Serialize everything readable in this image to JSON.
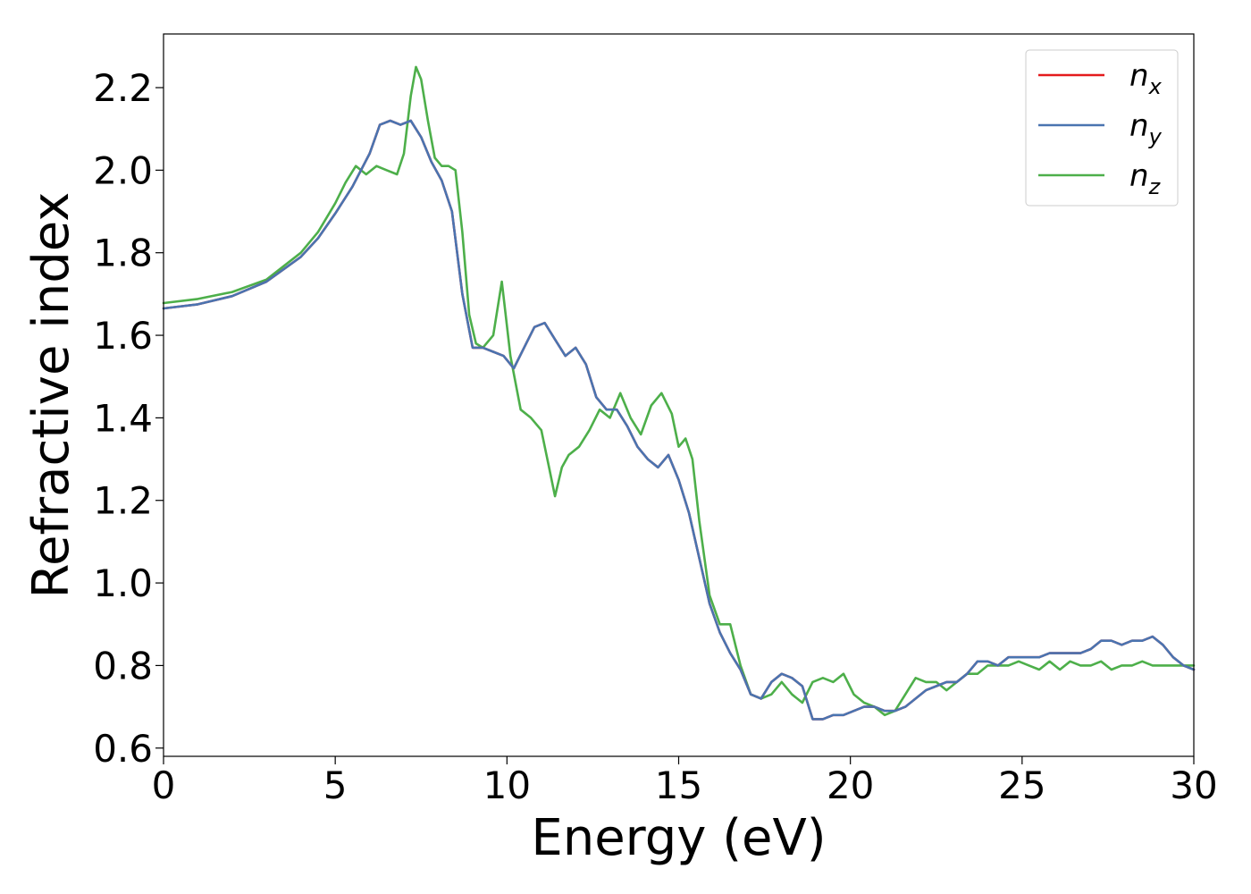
{
  "chart_data": {
    "type": "line",
    "title": "",
    "xlabel": "Energy (eV)",
    "ylabel": "Refractive index",
    "xlim": [
      0,
      30
    ],
    "ylim": [
      0.58,
      2.33
    ],
    "xticks": [
      "0",
      "5",
      "10",
      "15",
      "20",
      "25",
      "30"
    ],
    "yticks": [
      "0.6",
      "0.8",
      "1.0",
      "1.2",
      "1.4",
      "1.6",
      "1.8",
      "2.0",
      "2.2"
    ],
    "grid": false,
    "legend_position": "top-right",
    "series": [
      {
        "name": "n_x",
        "label_base": "n",
        "label_sub": "x",
        "color": "#e41a1c",
        "x": [
          0,
          1,
          2,
          3,
          4,
          4.5,
          5,
          5.5,
          6,
          6.3,
          6.6,
          6.9,
          7.2,
          7.5,
          7.8,
          8.1,
          8.4,
          8.7,
          9.0,
          9.3,
          9.6,
          9.9,
          10.2,
          10.5,
          10.8,
          11.1,
          11.4,
          11.7,
          12.0,
          12.3,
          12.6,
          12.9,
          13.2,
          13.5,
          13.8,
          14.1,
          14.4,
          14.7,
          15.0,
          15.3,
          15.6,
          15.9,
          16.2,
          16.5,
          16.8,
          17.1,
          17.4,
          17.7,
          18.0,
          18.3,
          18.6,
          18.9,
          19.2,
          19.5,
          19.8,
          20.1,
          20.4,
          20.7,
          21.0,
          21.3,
          21.6,
          21.9,
          22.2,
          22.5,
          22.8,
          23.1,
          23.4,
          23.7,
          24.0,
          24.3,
          24.6,
          24.9,
          25.2,
          25.5,
          25.8,
          26.1,
          26.4,
          26.7,
          27.0,
          27.3,
          27.6,
          27.9,
          28.2,
          28.5,
          28.8,
          29.1,
          29.4,
          29.7,
          30.0
        ],
        "y": [
          1.665,
          1.675,
          1.695,
          1.73,
          1.79,
          1.835,
          1.895,
          1.96,
          2.04,
          2.11,
          2.12,
          2.11,
          2.12,
          2.08,
          2.02,
          1.975,
          1.9,
          1.7,
          1.57,
          1.57,
          1.56,
          1.55,
          1.52,
          1.57,
          1.62,
          1.63,
          1.59,
          1.55,
          1.57,
          1.53,
          1.45,
          1.42,
          1.42,
          1.38,
          1.33,
          1.3,
          1.28,
          1.31,
          1.25,
          1.17,
          1.06,
          0.95,
          0.88,
          0.83,
          0.79,
          0.73,
          0.72,
          0.76,
          0.78,
          0.77,
          0.75,
          0.67,
          0.67,
          0.68,
          0.68,
          0.69,
          0.7,
          0.7,
          0.69,
          0.69,
          0.7,
          0.72,
          0.74,
          0.75,
          0.76,
          0.76,
          0.78,
          0.81,
          0.81,
          0.8,
          0.82,
          0.82,
          0.82,
          0.82,
          0.83,
          0.83,
          0.83,
          0.83,
          0.84,
          0.86,
          0.86,
          0.85,
          0.86,
          0.86,
          0.87,
          0.85,
          0.82,
          0.8,
          0.79
        ]
      },
      {
        "name": "n_y",
        "label_base": "n",
        "label_sub": "y",
        "color": "#4a74b0",
        "x": [
          0,
          1,
          2,
          3,
          4,
          4.5,
          5,
          5.5,
          6,
          6.3,
          6.6,
          6.9,
          7.2,
          7.5,
          7.8,
          8.1,
          8.4,
          8.7,
          9.0,
          9.3,
          9.6,
          9.9,
          10.2,
          10.5,
          10.8,
          11.1,
          11.4,
          11.7,
          12.0,
          12.3,
          12.6,
          12.9,
          13.2,
          13.5,
          13.8,
          14.1,
          14.4,
          14.7,
          15.0,
          15.3,
          15.6,
          15.9,
          16.2,
          16.5,
          16.8,
          17.1,
          17.4,
          17.7,
          18.0,
          18.3,
          18.6,
          18.9,
          19.2,
          19.5,
          19.8,
          20.1,
          20.4,
          20.7,
          21.0,
          21.3,
          21.6,
          21.9,
          22.2,
          22.5,
          22.8,
          23.1,
          23.4,
          23.7,
          24.0,
          24.3,
          24.6,
          24.9,
          25.2,
          25.5,
          25.8,
          26.1,
          26.4,
          26.7,
          27.0,
          27.3,
          27.6,
          27.9,
          28.2,
          28.5,
          28.8,
          29.1,
          29.4,
          29.7,
          30.0
        ],
        "y": [
          1.665,
          1.675,
          1.695,
          1.73,
          1.79,
          1.835,
          1.895,
          1.96,
          2.04,
          2.11,
          2.12,
          2.11,
          2.12,
          2.08,
          2.02,
          1.975,
          1.9,
          1.7,
          1.57,
          1.57,
          1.56,
          1.55,
          1.52,
          1.57,
          1.62,
          1.63,
          1.59,
          1.55,
          1.57,
          1.53,
          1.45,
          1.42,
          1.42,
          1.38,
          1.33,
          1.3,
          1.28,
          1.31,
          1.25,
          1.17,
          1.06,
          0.95,
          0.88,
          0.83,
          0.79,
          0.73,
          0.72,
          0.76,
          0.78,
          0.77,
          0.75,
          0.67,
          0.67,
          0.68,
          0.68,
          0.69,
          0.7,
          0.7,
          0.69,
          0.69,
          0.7,
          0.72,
          0.74,
          0.75,
          0.76,
          0.76,
          0.78,
          0.81,
          0.81,
          0.8,
          0.82,
          0.82,
          0.82,
          0.82,
          0.83,
          0.83,
          0.83,
          0.83,
          0.84,
          0.86,
          0.86,
          0.85,
          0.86,
          0.86,
          0.87,
          0.85,
          0.82,
          0.8,
          0.79
        ]
      },
      {
        "name": "n_z",
        "label_base": "n",
        "label_sub": "z",
        "color": "#4daf4a",
        "x": [
          0,
          1,
          2,
          3,
          4,
          4.5,
          5,
          5.3,
          5.6,
          5.9,
          6.2,
          6.5,
          6.8,
          7.0,
          7.2,
          7.35,
          7.5,
          7.7,
          7.9,
          8.1,
          8.3,
          8.5,
          8.7,
          8.9,
          9.1,
          9.3,
          9.6,
          9.85,
          10.1,
          10.4,
          10.7,
          11.0,
          11.2,
          11.4,
          11.6,
          11.8,
          12.1,
          12.4,
          12.7,
          13.0,
          13.3,
          13.6,
          13.9,
          14.2,
          14.5,
          14.8,
          15.0,
          15.2,
          15.4,
          15.6,
          15.9,
          16.2,
          16.5,
          16.8,
          17.1,
          17.4,
          17.7,
          18.0,
          18.3,
          18.6,
          18.9,
          19.2,
          19.5,
          19.8,
          20.1,
          20.4,
          20.7,
          21.0,
          21.3,
          21.6,
          21.9,
          22.2,
          22.5,
          22.8,
          23.1,
          23.4,
          23.7,
          24.0,
          24.3,
          24.6,
          24.9,
          25.2,
          25.5,
          25.8,
          26.1,
          26.4,
          26.7,
          27.0,
          27.3,
          27.6,
          27.9,
          28.2,
          28.5,
          28.8,
          29.1,
          29.4,
          29.7,
          30.0
        ],
        "y": [
          1.678,
          1.688,
          1.705,
          1.735,
          1.8,
          1.85,
          1.92,
          1.97,
          2.01,
          1.99,
          2.01,
          2.0,
          1.99,
          2.04,
          2.18,
          2.25,
          2.22,
          2.12,
          2.03,
          2.01,
          2.01,
          2.0,
          1.85,
          1.65,
          1.58,
          1.57,
          1.6,
          1.73,
          1.55,
          1.42,
          1.4,
          1.37,
          1.29,
          1.21,
          1.28,
          1.31,
          1.33,
          1.37,
          1.42,
          1.4,
          1.46,
          1.4,
          1.36,
          1.43,
          1.46,
          1.41,
          1.33,
          1.35,
          1.3,
          1.15,
          0.97,
          0.9,
          0.9,
          0.8,
          0.73,
          0.72,
          0.73,
          0.76,
          0.73,
          0.71,
          0.76,
          0.77,
          0.76,
          0.78,
          0.73,
          0.71,
          0.7,
          0.68,
          0.69,
          0.73,
          0.77,
          0.76,
          0.76,
          0.74,
          0.76,
          0.78,
          0.78,
          0.8,
          0.8,
          0.8,
          0.81,
          0.8,
          0.79,
          0.81,
          0.79,
          0.81,
          0.8,
          0.8,
          0.81,
          0.79,
          0.8,
          0.8,
          0.81,
          0.8,
          0.8,
          0.8,
          0.8,
          0.8
        ]
      }
    ]
  }
}
